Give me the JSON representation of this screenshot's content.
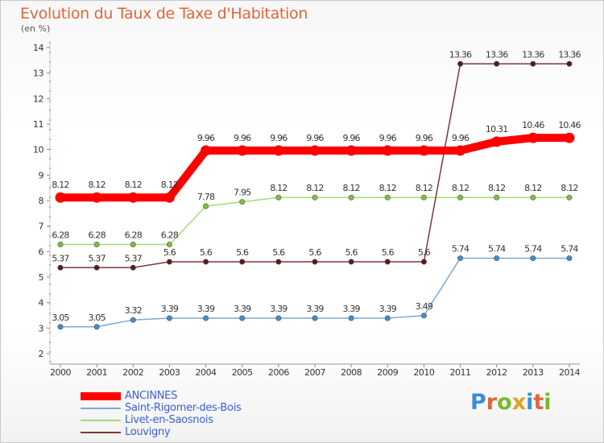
{
  "title": "Evolution du Taux de Taxe d'Habitation",
  "subtitle": "(en %)",
  "logo": {
    "text": "Proxiti",
    "colors": [
      "#3a8fd6",
      "#e0663a",
      "#7ab92b",
      "#e0a020",
      "#3a8fd6",
      "#e0663a",
      "#7ab92b"
    ]
  },
  "chart_data": {
    "type": "line",
    "x": [
      "2000",
      "2001",
      "2002",
      "2003",
      "2004",
      "2005",
      "2006",
      "2007",
      "2008",
      "2009",
      "2010",
      "2011",
      "2012",
      "2013",
      "2014"
    ],
    "ylim": [
      2,
      14
    ],
    "yticks": [
      "2",
      "3",
      "4",
      "5",
      "6",
      "7",
      "8",
      "9",
      "10",
      "11",
      "12",
      "13",
      "14"
    ],
    "grid": false,
    "legend_position": "bottom-left",
    "series": [
      {
        "name": "ANCINNES",
        "color": "#ff0000",
        "marker_color": "#ff0000",
        "values": [
          8.12,
          8.12,
          8.12,
          8.12,
          9.96,
          9.96,
          9.96,
          9.96,
          9.96,
          9.96,
          9.96,
          9.96,
          10.31,
          10.46,
          10.46
        ],
        "labels": [
          "8.12",
          "8.12",
          "8.12",
          "8.12",
          "9.96",
          "9.96",
          "9.96",
          "9.96",
          "9.96",
          "9.96",
          "9.96",
          "9.96",
          "10.31",
          "10.46",
          "10.46"
        ],
        "emphasis": true
      },
      {
        "name": "Saint-Rigomer-des-Bois",
        "color": "#7ea9d1",
        "marker_color": "#3e8ed0",
        "values": [
          3.05,
          3.05,
          3.32,
          3.39,
          3.39,
          3.39,
          3.39,
          3.39,
          3.39,
          3.39,
          3.49,
          5.74,
          5.74,
          5.74,
          5.74
        ],
        "labels": [
          "3.05",
          "3.05",
          "3.32",
          "3.39",
          "3.39",
          "3.39",
          "3.39",
          "3.39",
          "3.39",
          "3.39",
          "3.49",
          "5.74",
          "5.74",
          "5.74",
          "5.74"
        ],
        "emphasis": false
      },
      {
        "name": "Livet-en-Saosnois",
        "color": "#a6d97a",
        "marker_color": "#7ac143",
        "values": [
          6.28,
          6.28,
          6.28,
          6.28,
          7.78,
          7.95,
          8.12,
          8.12,
          8.12,
          8.12,
          8.12,
          8.12,
          8.12,
          8.12,
          8.12
        ],
        "labels": [
          "6.28",
          "6.28",
          "6.28",
          "6.28",
          "7.78",
          "7.95",
          "8.12",
          "8.12",
          "8.12",
          "8.12",
          "8.12",
          "8.12",
          "8.12",
          "8.12",
          "8.12"
        ],
        "emphasis": false
      },
      {
        "name": "Louvigny",
        "color": "#7a3a3a",
        "marker_color": "#5a1a1a",
        "values": [
          5.37,
          5.37,
          5.37,
          5.6,
          5.6,
          5.6,
          5.6,
          5.6,
          5.6,
          5.6,
          5.6,
          13.36,
          13.36,
          13.36,
          13.36
        ],
        "labels": [
          "5.37",
          "5.37",
          "5.37",
          "5.6",
          "5.6",
          "5.6",
          "5.6",
          "5.6",
          "5.6",
          "5.6",
          "5.6",
          "13.36",
          "13.36",
          "13.36",
          "13.36"
        ],
        "emphasis": false
      }
    ]
  }
}
